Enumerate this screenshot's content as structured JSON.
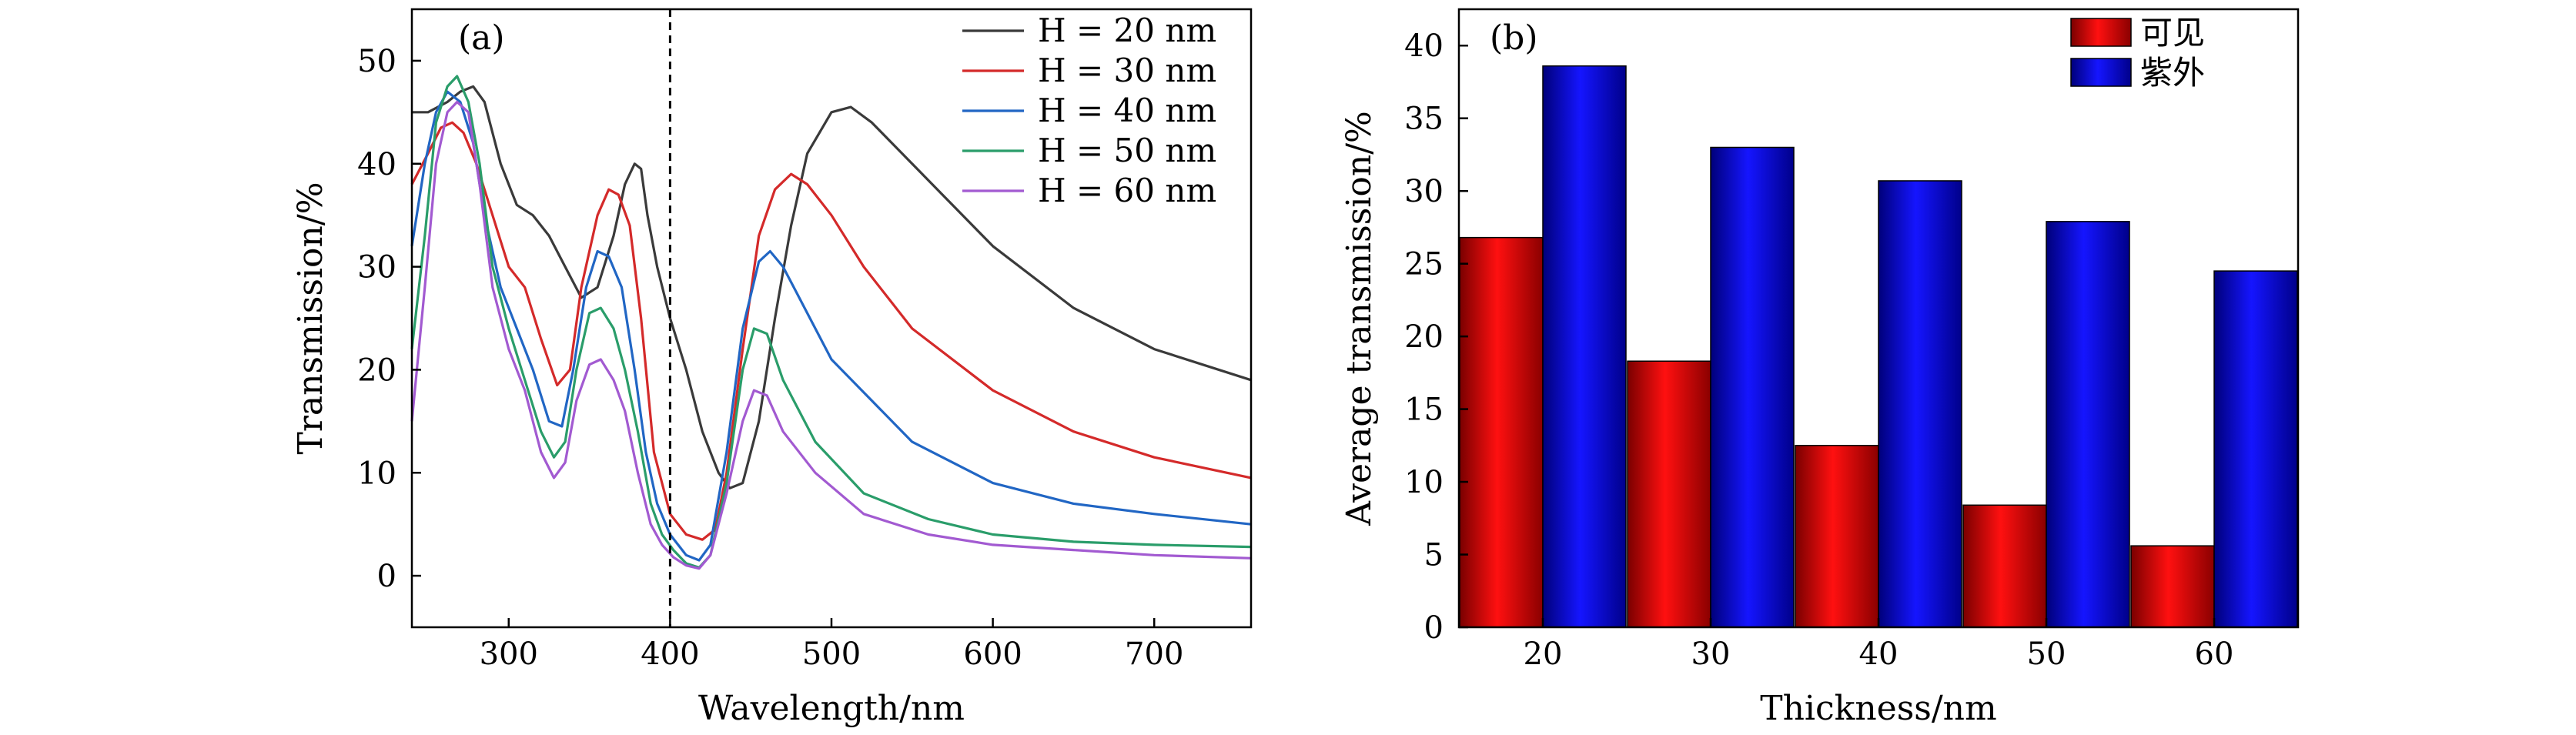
{
  "chart_data": [
    {
      "type": "line",
      "panel_label": "(a)",
      "xlabel": "Wavelength/nm",
      "ylabel": "Transmission/%",
      "xlim": [
        240,
        760
      ],
      "ylim": [
        -5,
        55
      ],
      "xticks": [
        300,
        400,
        500,
        600,
        700
      ],
      "yticks": [
        0,
        10,
        20,
        30,
        40,
        50
      ],
      "reference_line_x": 400,
      "legend_position": "top-right",
      "series": [
        {
          "name": "H = 20 nm",
          "color": "#3a3a3a",
          "x": [
            240,
            250,
            262,
            270,
            278,
            285,
            295,
            305,
            315,
            325,
            335,
            345,
            355,
            365,
            372,
            378,
            382,
            386,
            392,
            400,
            410,
            420,
            430,
            437,
            445,
            455,
            465,
            475,
            485,
            500,
            512,
            525,
            550,
            600,
            650,
            700,
            760
          ],
          "y": [
            45,
            45,
            46,
            47,
            47.5,
            46,
            40,
            36,
            35,
            33,
            30,
            27,
            28,
            33,
            38,
            40,
            39.5,
            35,
            30,
            25,
            20,
            14,
            10,
            8.5,
            9,
            15,
            25,
            34,
            41,
            45,
            45.5,
            44,
            40,
            32,
            26,
            22,
            19
          ]
        },
        {
          "name": "H = 30 nm",
          "color": "#d42a2a",
          "x": [
            240,
            250,
            258,
            265,
            272,
            280,
            290,
            300,
            310,
            320,
            330,
            338,
            345,
            355,
            362,
            368,
            375,
            382,
            390,
            400,
            410,
            420,
            428,
            435,
            445,
            455,
            465,
            475,
            485,
            500,
            520,
            550,
            600,
            650,
            700,
            760
          ],
          "y": [
            38,
            41,
            43.5,
            44,
            43,
            40,
            35,
            30,
            28,
            23,
            18.5,
            20,
            28,
            35,
            37.5,
            37,
            34,
            25,
            12,
            6,
            4,
            3.5,
            4.5,
            10,
            22,
            33,
            37.5,
            39,
            38,
            35,
            30,
            24,
            18,
            14,
            11.5,
            9.5
          ]
        },
        {
          "name": "H = 40 nm",
          "color": "#2166c4",
          "x": [
            240,
            248,
            255,
            262,
            270,
            278,
            285,
            295,
            305,
            315,
            325,
            333,
            340,
            348,
            355,
            362,
            370,
            378,
            385,
            392,
            400,
            410,
            418,
            425,
            435,
            445,
            455,
            462,
            470,
            480,
            500,
            550,
            600,
            650,
            700,
            760
          ],
          "y": [
            32,
            40,
            45,
            47,
            46,
            42,
            35,
            28,
            24,
            20,
            15,
            14.5,
            20,
            28,
            31.5,
            31,
            28,
            20,
            12,
            7,
            4,
            2,
            1.5,
            3,
            12,
            24,
            30.5,
            31.5,
            30,
            27,
            21,
            13,
            9,
            7,
            6,
            5
          ]
        },
        {
          "name": "H = 50 nm",
          "color": "#2a9d6a",
          "x": [
            240,
            248,
            255,
            262,
            268,
            275,
            282,
            290,
            300,
            310,
            320,
            328,
            335,
            342,
            350,
            357,
            365,
            372,
            380,
            388,
            395,
            402,
            410,
            418,
            425,
            435,
            445,
            452,
            460,
            470,
            490,
            520,
            560,
            600,
            650,
            700,
            760
          ],
          "y": [
            22,
            33,
            44,
            47.5,
            48.5,
            46,
            40,
            30,
            24,
            19,
            14,
            11.5,
            13,
            20,
            25.5,
            26,
            24,
            20,
            14,
            7,
            4,
            2.5,
            1.2,
            0.8,
            2,
            9,
            20,
            24,
            23.5,
            19,
            13,
            8,
            5.5,
            4,
            3.3,
            3,
            2.8
          ]
        },
        {
          "name": "H = 60 nm",
          "color": "#a25ad1",
          "x": [
            240,
            248,
            255,
            262,
            268,
            275,
            282,
            290,
            300,
            310,
            320,
            328,
            335,
            342,
            350,
            357,
            365,
            372,
            380,
            388,
            395,
            402,
            410,
            418,
            425,
            435,
            445,
            452,
            460,
            470,
            490,
            520,
            560,
            600,
            650,
            700,
            760
          ],
          "y": [
            15,
            28,
            40,
            45,
            46,
            45,
            38,
            28,
            22,
            18,
            12,
            9.5,
            11,
            17,
            20.5,
            21,
            19,
            16,
            10,
            5,
            3,
            1.8,
            1,
            0.7,
            2,
            8,
            15,
            18,
            17.5,
            14,
            10,
            6,
            4,
            3,
            2.5,
            2,
            1.7
          ]
        }
      ]
    },
    {
      "type": "bar",
      "panel_label": "(b)",
      "xlabel": "Thickness/nm",
      "ylabel": "Average transmission/%",
      "categories": [
        "20",
        "30",
        "40",
        "50",
        "60"
      ],
      "ylim": [
        0,
        42.5
      ],
      "yticks": [
        0,
        5,
        10,
        15,
        20,
        25,
        30,
        35,
        40
      ],
      "legend_position": "top-right",
      "series": [
        {
          "name": "可见",
          "color": "#e30000",
          "values": [
            26.8,
            18.3,
            12.5,
            8.4,
            5.6
          ]
        },
        {
          "name": "紫外",
          "color": "#0000e6",
          "values": [
            38.6,
            33.0,
            30.7,
            27.9,
            24.5
          ]
        }
      ]
    }
  ]
}
